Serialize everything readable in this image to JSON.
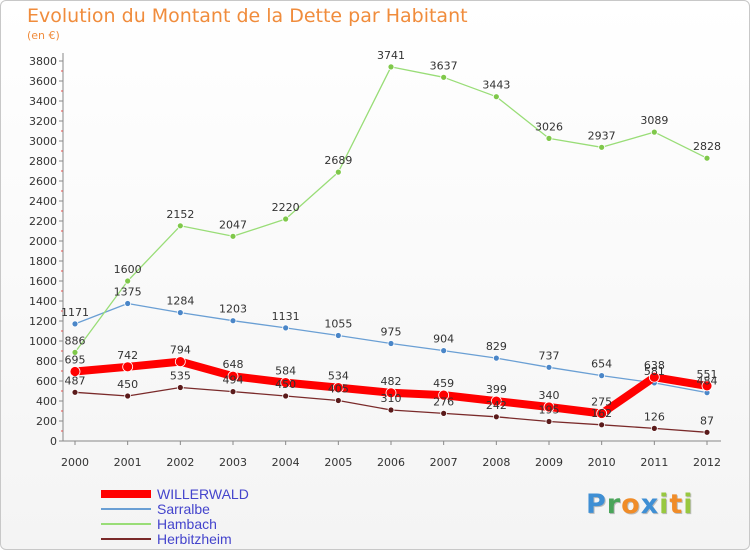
{
  "title": "Evolution du Montant de la Dette par Habitant",
  "subtitle": "(en €)",
  "chart_data": {
    "type": "line",
    "title": "Evolution du Montant de la Dette par Habitant",
    "subtitle": "(en €)",
    "x": [
      "2000",
      "2001",
      "2002",
      "2003",
      "2004",
      "2005",
      "2006",
      "2007",
      "2008",
      "2009",
      "2010",
      "2011",
      "2012"
    ],
    "ylim": [
      0,
      3800
    ],
    "yticks": [
      0,
      200,
      400,
      600,
      800,
      1000,
      1200,
      1400,
      1600,
      1800,
      2000,
      2200,
      2400,
      2600,
      2800,
      3000,
      3200,
      3400,
      3600,
      3800
    ],
    "grid": false,
    "legend_position": "bottom-left",
    "series": [
      {
        "name": "WILLERWALD",
        "color": "#ff0000",
        "values": [
          695,
          742,
          794,
          648,
          584,
          534,
          482,
          459,
          399,
          340,
          275,
          638,
          551
        ],
        "labels": [
          "695",
          "742",
          "794",
          "648",
          "584",
          "534",
          "482",
          "459",
          "399",
          "340",
          "275",
          "638",
          "551"
        ]
      },
      {
        "name": "Sarralbe",
        "color": "#6a9fd4",
        "values": [
          1171,
          1375,
          1284,
          1203,
          1131,
          1055,
          975,
          904,
          829,
          737,
          654,
          581,
          484
        ],
        "labels": [
          "1171",
          "1375",
          "1284",
          "1203",
          "1131",
          "1055",
          "975",
          "904",
          "829",
          "737",
          "654",
          "581",
          "484"
        ]
      },
      {
        "name": "Hambach",
        "color": "#99dd77",
        "values": [
          886,
          1600,
          2152,
          2047,
          2220,
          2689,
          3741,
          3637,
          3443,
          3026,
          2937,
          3089,
          2828
        ],
        "labels": [
          "886",
          "1600",
          "2152",
          "2047",
          "2220",
          "2689",
          "3741",
          "3637",
          "3443",
          "3026",
          "2937",
          "3089",
          "2828"
        ]
      },
      {
        "name": "Herbitzheim",
        "color": "#7a2a2a",
        "values": [
          487,
          450,
          535,
          494,
          450,
          405,
          310,
          276,
          242,
          195,
          162,
          126,
          87
        ],
        "labels": [
          "487",
          "450",
          "535",
          "494",
          "450",
          "405",
          "310",
          "276",
          "242",
          "195",
          "162",
          "126",
          "87"
        ]
      }
    ]
  },
  "logo": {
    "letters": [
      {
        "ch": "P",
        "color": "#3f8fd4"
      },
      {
        "ch": "r",
        "color": "#4aa55a"
      },
      {
        "ch": "o",
        "color": "#f08c28"
      },
      {
        "ch": "x",
        "color": "#3f8fd4"
      },
      {
        "ch": "i",
        "color": "#98c840"
      },
      {
        "ch": "t",
        "color": "#f08c28"
      },
      {
        "ch": "i",
        "color": "#98c840"
      }
    ]
  }
}
